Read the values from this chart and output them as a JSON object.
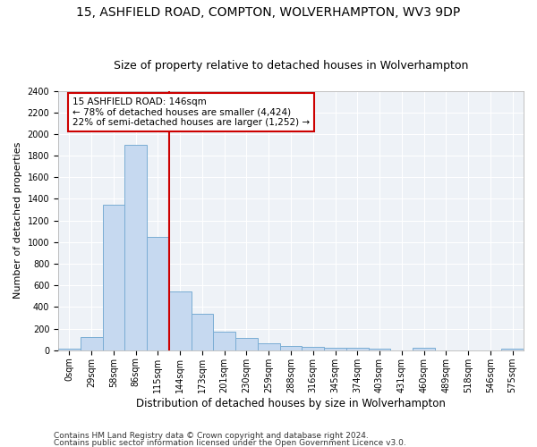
{
  "title1": "15, ASHFIELD ROAD, COMPTON, WOLVERHAMPTON, WV3 9DP",
  "title2": "Size of property relative to detached houses in Wolverhampton",
  "xlabel": "Distribution of detached houses by size in Wolverhampton",
  "ylabel": "Number of detached properties",
  "categories": [
    "0sqm",
    "29sqm",
    "58sqm",
    "86sqm",
    "115sqm",
    "144sqm",
    "173sqm",
    "201sqm",
    "230sqm",
    "259sqm",
    "288sqm",
    "316sqm",
    "345sqm",
    "374sqm",
    "403sqm",
    "431sqm",
    "460sqm",
    "489sqm",
    "518sqm",
    "546sqm",
    "575sqm"
  ],
  "bar_heights": [
    15,
    125,
    1350,
    1900,
    1050,
    540,
    335,
    170,
    110,
    65,
    40,
    30,
    25,
    20,
    15,
    0,
    20,
    0,
    0,
    0,
    15
  ],
  "bar_color": "#c6d9f0",
  "bar_edge_color": "#7aadd4",
  "vline_x": 4.5,
  "annotation_line1": "15 ASHFIELD ROAD: 146sqm",
  "annotation_line2": "← 78% of detached houses are smaller (4,424)",
  "annotation_line3": "22% of semi-detached houses are larger (1,252) →",
  "annotation_box_color": "#ffffff",
  "annotation_border_color": "#cc0000",
  "vline_color": "#cc0000",
  "ylim": [
    0,
    2400
  ],
  "yticks": [
    0,
    200,
    400,
    600,
    800,
    1000,
    1200,
    1400,
    1600,
    1800,
    2000,
    2200,
    2400
  ],
  "footer1": "Contains HM Land Registry data © Crown copyright and database right 2024.",
  "footer2": "Contains public sector information licensed under the Open Government Licence v3.0.",
  "bg_color": "#ffffff",
  "plot_bg_color": "#eef2f7",
  "grid_color": "#ffffff",
  "title1_fontsize": 10,
  "title2_fontsize": 9,
  "xlabel_fontsize": 8.5,
  "ylabel_fontsize": 8,
  "tick_fontsize": 7,
  "annotation_fontsize": 7.5,
  "footer_fontsize": 6.5
}
